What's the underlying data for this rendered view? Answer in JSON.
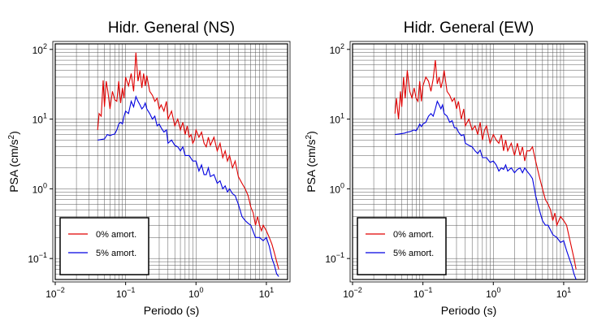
{
  "chart_data": [
    {
      "type": "line",
      "title": "Hidr. General (NS)",
      "xlabel": "Periodo (s)",
      "ylabel": "PSA (cm/s²)",
      "x_scale": "log",
      "y_scale": "log",
      "xlim": [
        0.01,
        20
      ],
      "ylim": [
        0.05,
        120
      ],
      "grid": true,
      "legend_position": "bottom-left",
      "x_ticks": [
        0.01,
        0.1,
        1,
        10
      ],
      "x_tick_labels": [
        {
          "base": "10",
          "exp": "−2"
        },
        {
          "base": "10",
          "exp": "−1"
        },
        {
          "base": "10",
          "exp": "0"
        },
        {
          "base": "10",
          "exp": "1"
        }
      ],
      "y_ticks": [
        0.1,
        1,
        10,
        100
      ],
      "y_tick_labels": [
        {
          "base": "10",
          "exp": "−1"
        },
        {
          "base": "10",
          "exp": "0"
        },
        {
          "base": "10",
          "exp": "1"
        },
        {
          "base": "10",
          "exp": "2"
        }
      ],
      "series": [
        {
          "name": "0% amort.",
          "color": "#e00000",
          "x": [
            0.04,
            0.042,
            0.045,
            0.048,
            0.05,
            0.053,
            0.056,
            0.06,
            0.065,
            0.07,
            0.075,
            0.08,
            0.085,
            0.09,
            0.095,
            0.1,
            0.11,
            0.12,
            0.13,
            0.14,
            0.15,
            0.16,
            0.17,
            0.18,
            0.19,
            0.2,
            0.22,
            0.24,
            0.26,
            0.28,
            0.3,
            0.32,
            0.35,
            0.38,
            0.4,
            0.45,
            0.5,
            0.55,
            0.6,
            0.65,
            0.7,
            0.75,
            0.8,
            0.85,
            0.9,
            0.95,
            1.0,
            1.1,
            1.2,
            1.3,
            1.4,
            1.5,
            1.6,
            1.8,
            2.0,
            2.2,
            2.4,
            2.6,
            2.8,
            3.0,
            3.3,
            3.6,
            4.0,
            4.5,
            5.0,
            5.5,
            6.0,
            6.5,
            7.0,
            7.5,
            8.0,
            8.5,
            9.0,
            10,
            11,
            12,
            13,
            14,
            15
          ],
          "y": [
            7,
            12,
            11,
            36,
            15,
            35,
            25,
            14,
            25,
            19,
            18,
            35,
            17,
            28,
            20,
            40,
            30,
            45,
            25,
            90,
            35,
            50,
            28,
            45,
            30,
            42,
            25,
            22,
            18,
            20,
            14,
            16,
            13,
            18,
            10,
            13,
            8,
            10,
            7,
            9,
            6,
            8,
            5.5,
            6,
            4.5,
            5,
            7,
            5.5,
            6.5,
            4.5,
            4,
            5.5,
            4.2,
            5.5,
            3.5,
            4.5,
            2.8,
            3.5,
            2.5,
            3.0,
            2.0,
            2.5,
            1.5,
            1.2,
            1.0,
            0.8,
            0.55,
            0.45,
            0.3,
            0.4,
            0.3,
            0.25,
            0.3,
            0.25,
            0.2,
            0.16,
            0.12,
            0.09,
            0.07
          ]
        },
        {
          "name": "5% amort.",
          "color": "#0000e0",
          "x": [
            0.04,
            0.045,
            0.05,
            0.055,
            0.06,
            0.065,
            0.07,
            0.075,
            0.08,
            0.085,
            0.09,
            0.095,
            0.1,
            0.11,
            0.12,
            0.13,
            0.14,
            0.15,
            0.16,
            0.17,
            0.18,
            0.19,
            0.2,
            0.22,
            0.24,
            0.26,
            0.28,
            0.3,
            0.32,
            0.35,
            0.38,
            0.4,
            0.45,
            0.5,
            0.55,
            0.6,
            0.65,
            0.7,
            0.8,
            0.9,
            1.0,
            1.1,
            1.2,
            1.3,
            1.4,
            1.5,
            1.6,
            1.8,
            2.0,
            2.2,
            2.4,
            2.6,
            2.8,
            3.0,
            3.3,
            3.6,
            4.0,
            4.5,
            5.0,
            5.5,
            6.0,
            7.0,
            8.0,
            9.0,
            10,
            11,
            12,
            13,
            14,
            15
          ],
          "y": [
            5,
            5.1,
            5.2,
            6,
            5.8,
            6,
            6.1,
            7,
            8.5,
            9,
            8.5,
            11,
            13,
            12,
            18,
            15,
            21,
            18,
            16,
            14,
            15,
            17,
            14,
            12,
            10,
            11,
            8,
            8.5,
            7.5,
            6.5,
            7,
            4.5,
            5,
            4.2,
            4,
            3.5,
            4,
            3,
            3,
            2.5,
            2.5,
            1.8,
            2.2,
            1.6,
            1.6,
            2,
            1.5,
            1.6,
            1.2,
            1.3,
            1.0,
            1.1,
            0.9,
            1.0,
            0.85,
            0.8,
            0.6,
            0.4,
            0.35,
            0.32,
            0.3,
            0.2,
            0.2,
            0.18,
            0.2,
            0.15,
            0.1,
            0.08,
            0.06,
            0.055
          ]
        }
      ]
    },
    {
      "type": "line",
      "title": "Hidr. General (EW)",
      "xlabel": "Periodo (s)",
      "ylabel": "PSA (cm/s²)",
      "x_scale": "log",
      "y_scale": "log",
      "xlim": [
        0.01,
        20
      ],
      "ylim": [
        0.05,
        120
      ],
      "grid": true,
      "legend_position": "bottom-left",
      "x_ticks": [
        0.01,
        0.1,
        1,
        10
      ],
      "x_tick_labels": [
        {
          "base": "10",
          "exp": "−2"
        },
        {
          "base": "10",
          "exp": "−1"
        },
        {
          "base": "10",
          "exp": "0"
        },
        {
          "base": "10",
          "exp": "1"
        }
      ],
      "y_ticks": [
        0.1,
        1,
        10,
        100
      ],
      "y_tick_labels": [
        {
          "base": "10",
          "exp": "−1"
        },
        {
          "base": "10",
          "exp": "0"
        },
        {
          "base": "10",
          "exp": "1"
        },
        {
          "base": "10",
          "exp": "2"
        }
      ],
      "series": [
        {
          "name": "0% amort.",
          "color": "#e00000",
          "x": [
            0.04,
            0.042,
            0.045,
            0.048,
            0.05,
            0.053,
            0.056,
            0.06,
            0.065,
            0.07,
            0.075,
            0.08,
            0.085,
            0.09,
            0.095,
            0.1,
            0.11,
            0.12,
            0.13,
            0.14,
            0.15,
            0.16,
            0.17,
            0.18,
            0.19,
            0.2,
            0.22,
            0.24,
            0.26,
            0.28,
            0.3,
            0.32,
            0.35,
            0.38,
            0.4,
            0.45,
            0.5,
            0.55,
            0.6,
            0.65,
            0.7,
            0.75,
            0.8,
            0.9,
            1.0,
            1.1,
            1.2,
            1.3,
            1.4,
            1.5,
            1.6,
            1.8,
            2.0,
            2.2,
            2.4,
            2.6,
            2.8,
            3.0,
            3.3,
            3.6,
            4.0,
            4.5,
            5.0,
            5.5,
            6.0,
            6.5,
            7.0,
            7.5,
            8.0,
            9.0,
            10,
            11,
            12,
            13,
            14,
            15
          ],
          "y": [
            12,
            20,
            10,
            25,
            15,
            40,
            20,
            50,
            25,
            20,
            28,
            20,
            18,
            35,
            18,
            30,
            40,
            35,
            25,
            38,
            70,
            32,
            40,
            28,
            35,
            50,
            25,
            22,
            18,
            20,
            14,
            18,
            10,
            14,
            8,
            10,
            7,
            8,
            6,
            9,
            5,
            7,
            8,
            4.5,
            6,
            5,
            4.5,
            6,
            3.5,
            5,
            3.5,
            4.5,
            3,
            4.5,
            3,
            4,
            2.5,
            3.5,
            3.5,
            4,
            2.5,
            1.5,
            1.0,
            0.7,
            0.6,
            0.5,
            0.35,
            0.45,
            0.3,
            0.4,
            0.35,
            0.3,
            0.2,
            0.14,
            0.1,
            0.07
          ]
        },
        {
          "name": "5% amort.",
          "color": "#0000e0",
          "x": [
            0.04,
            0.045,
            0.05,
            0.055,
            0.06,
            0.065,
            0.07,
            0.075,
            0.08,
            0.085,
            0.09,
            0.095,
            0.1,
            0.11,
            0.12,
            0.13,
            0.14,
            0.15,
            0.16,
            0.17,
            0.18,
            0.19,
            0.2,
            0.22,
            0.24,
            0.26,
            0.28,
            0.3,
            0.32,
            0.35,
            0.38,
            0.4,
            0.45,
            0.5,
            0.55,
            0.6,
            0.65,
            0.7,
            0.8,
            0.9,
            1.0,
            1.1,
            1.2,
            1.3,
            1.4,
            1.5,
            1.6,
            1.8,
            2.0,
            2.2,
            2.4,
            2.6,
            2.8,
            3.0,
            3.3,
            3.6,
            4.0,
            4.5,
            5.0,
            5.5,
            6.0,
            7.0,
            8.0,
            9.0,
            10,
            11,
            12,
            13,
            14,
            15
          ],
          "y": [
            6,
            6.1,
            6.2,
            6.3,
            6.5,
            6.6,
            6.8,
            7,
            6.8,
            7.5,
            8.5,
            7.8,
            8.5,
            9,
            11,
            12,
            11,
            14,
            18,
            16,
            14,
            16,
            12,
            11,
            9,
            9.5,
            7.5,
            7.5,
            6.5,
            5.8,
            6,
            4.5,
            4.2,
            4,
            3.5,
            3.2,
            3.6,
            2.8,
            2.8,
            2.4,
            2.5,
            2.2,
            1.8,
            2.0,
            1.9,
            2.2,
            1.8,
            2.0,
            1.7,
            1.9,
            2.0,
            1.7,
            2.0,
            1.8,
            1.6,
            1.4,
            0.8,
            0.5,
            0.35,
            0.3,
            0.3,
            0.22,
            0.2,
            0.17,
            0.18,
            0.13,
            0.1,
            0.08,
            0.06,
            0.05
          ]
        }
      ]
    }
  ]
}
